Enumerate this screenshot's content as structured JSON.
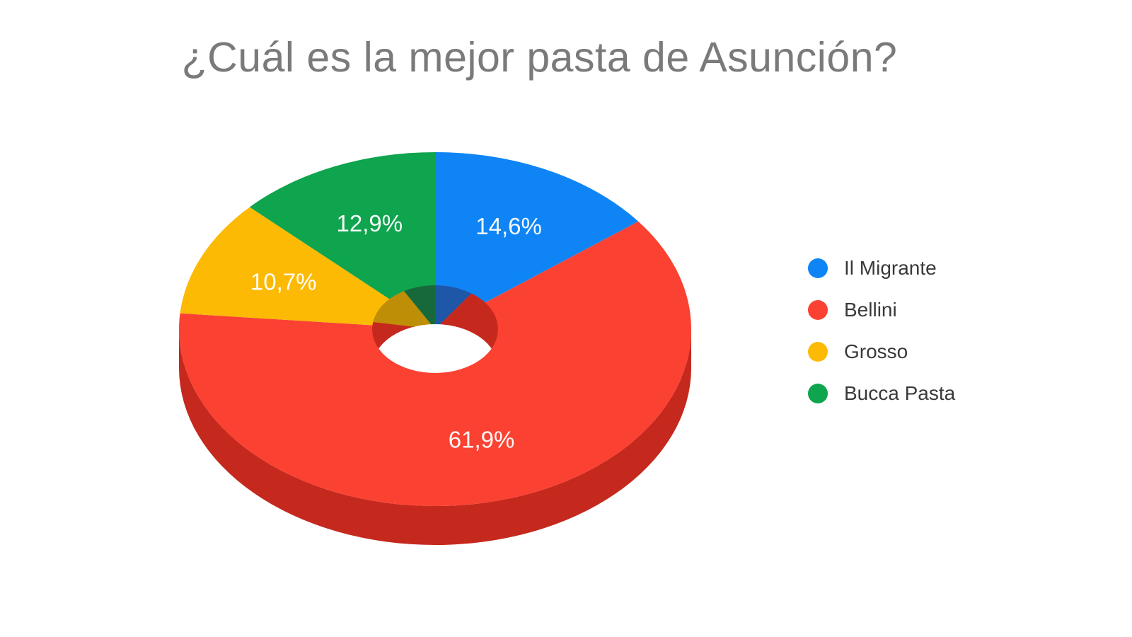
{
  "page": {
    "background": "#ffffff"
  },
  "chart_data": {
    "type": "pie",
    "style": "3d-donut",
    "title": "¿Cuál es la mejor pasta de Asunción?",
    "title_color": "#7a7a7a",
    "legend_position": "right",
    "direction": "clockwise",
    "start_angle_deg": 0,
    "categories": [
      "Il Migrante",
      "Bellini",
      "Grosso",
      "Bucca Pasta"
    ],
    "values": [
      14.6,
      61.9,
      10.7,
      12.9
    ],
    "slice_labels": [
      "14,6%",
      "61,9%",
      "10,7%",
      "12,9%"
    ],
    "colors": [
      "#0F85F5",
      "#FB4232",
      "#FDBA05",
      "#0FA44E"
    ],
    "side_colors": [
      "#1E57A8",
      "#C5291E",
      "#BD8E06",
      "#17693C"
    ],
    "slice_label_color": "#ffffff",
    "legend_text_color": "#3a3a3a"
  }
}
